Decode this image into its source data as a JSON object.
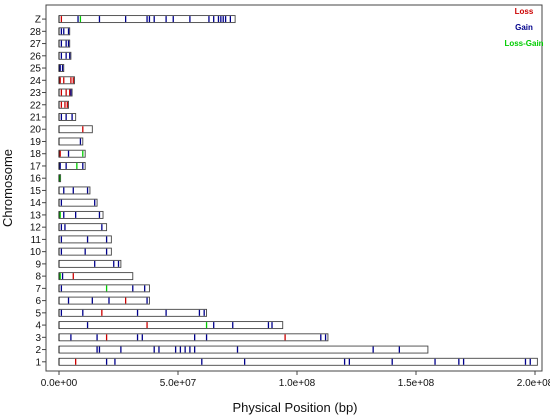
{
  "chart_data": {
    "type": "chromosome-ideogram",
    "xlabel": "Physical Position (bp)",
    "ylabel": "Chromosome",
    "xlim": [
      0,
      200000000
    ],
    "x_ticks": [
      {
        "value": 0,
        "label": "0.0e+00"
      },
      {
        "value": 50000000,
        "label": "5.0e+07"
      },
      {
        "value": 100000000,
        "label": "1.0e+08"
      },
      {
        "value": 150000000,
        "label": "1.5e+08"
      },
      {
        "value": 200000000,
        "label": "2.0e+08"
      }
    ],
    "legend": [
      {
        "name": "Loss",
        "color": "#cc0000"
      },
      {
        "name": "Gain",
        "color": "#00008b"
      },
      {
        "name": "Loss-Gain",
        "color": "#00cc00"
      }
    ],
    "colors": {
      "Loss": "#cc0000",
      "Gain": "#00008b",
      "Loss-Gain": "#00cc00",
      "frame": "#444444",
      "boundary": "#111111"
    },
    "chromosomes": [
      {
        "name": "1",
        "length": 201000000,
        "markers": [
          [
            7,
            "Loss"
          ],
          [
            20,
            "Gain"
          ],
          [
            23.5,
            "Gain"
          ],
          [
            60,
            "Gain"
          ],
          [
            78,
            "Gain"
          ],
          [
            120,
            "Gain"
          ],
          [
            122,
            "Gain"
          ],
          [
            140,
            "Gain"
          ],
          [
            158,
            "Gain"
          ],
          [
            168,
            "Gain"
          ],
          [
            170,
            "Gain"
          ],
          [
            196,
            "Gain"
          ],
          [
            198,
            "Gain"
          ]
        ]
      },
      {
        "name": "2",
        "length": 155000000,
        "markers": [
          [
            16,
            "Gain"
          ],
          [
            17,
            "Gain"
          ],
          [
            26,
            "Gain"
          ],
          [
            40,
            "Gain"
          ],
          [
            42,
            "Gain"
          ],
          [
            49,
            "Gain"
          ],
          [
            51,
            "Gain"
          ],
          [
            53,
            "Gain"
          ],
          [
            55,
            "Gain"
          ],
          [
            57,
            "Gain"
          ],
          [
            75,
            "Gain"
          ],
          [
            132,
            "Gain"
          ],
          [
            143,
            "Gain"
          ]
        ]
      },
      {
        "name": "3",
        "length": 113000000,
        "markers": [
          [
            5,
            "Gain"
          ],
          [
            16,
            "Gain"
          ],
          [
            20,
            "Loss"
          ],
          [
            33,
            "Gain"
          ],
          [
            35,
            "Gain"
          ],
          [
            57,
            "Gain"
          ],
          [
            62,
            "Gain"
          ],
          [
            95,
            "Loss"
          ],
          [
            110,
            "Gain"
          ],
          [
            112,
            "Gain"
          ]
        ]
      },
      {
        "name": "4",
        "length": 94000000,
        "markers": [
          [
            12,
            "Gain"
          ],
          [
            37,
            "Loss"
          ],
          [
            62,
            "Loss-Gain"
          ],
          [
            65,
            "Gain"
          ],
          [
            73,
            "Gain"
          ],
          [
            88,
            "Gain"
          ],
          [
            89.5,
            "Gain"
          ]
        ]
      },
      {
        "name": "5",
        "length": 62000000,
        "markers": [
          [
            1,
            "Gain"
          ],
          [
            10,
            "Gain"
          ],
          [
            18,
            "Loss"
          ],
          [
            33,
            "Gain"
          ],
          [
            45,
            "Gain"
          ],
          [
            59,
            "Gain"
          ],
          [
            61,
            "Gain"
          ]
        ]
      },
      {
        "name": "6",
        "length": 38000000,
        "markers": [
          [
            4,
            "Gain"
          ],
          [
            14,
            "Gain"
          ],
          [
            21,
            "Gain"
          ],
          [
            28,
            "Loss"
          ],
          [
            37,
            "Gain"
          ]
        ]
      },
      {
        "name": "7",
        "length": 38000000,
        "markers": [
          [
            1,
            "Gain"
          ],
          [
            20,
            "Loss-Gain"
          ],
          [
            31,
            "Gain"
          ],
          [
            36,
            "Gain"
          ]
        ]
      },
      {
        "name": "8",
        "length": 31000000,
        "markers": [
          [
            0.5,
            "Loss-Gain"
          ],
          [
            1.5,
            "Gain"
          ],
          [
            6,
            "Loss"
          ]
        ]
      },
      {
        "name": "9",
        "length": 26000000,
        "markers": [
          [
            15,
            "Gain"
          ],
          [
            23,
            "Gain"
          ],
          [
            25,
            "Gain"
          ]
        ]
      },
      {
        "name": "10",
        "length": 22000000,
        "markers": [
          [
            1,
            "Gain"
          ],
          [
            11,
            "Gain"
          ],
          [
            20,
            "Gain"
          ]
        ]
      },
      {
        "name": "11",
        "length": 22000000,
        "markers": [
          [
            1,
            "Gain"
          ],
          [
            12,
            "Gain"
          ],
          [
            20,
            "Gain"
          ]
        ]
      },
      {
        "name": "12",
        "length": 20000000,
        "markers": [
          [
            1,
            "Gain"
          ],
          [
            2.5,
            "Gain"
          ],
          [
            18,
            "Gain"
          ]
        ]
      },
      {
        "name": "13",
        "length": 18500000,
        "markers": [
          [
            0.5,
            "Loss-Gain"
          ],
          [
            2,
            "Gain"
          ],
          [
            7,
            "Gain"
          ],
          [
            17,
            "Gain"
          ]
        ]
      },
      {
        "name": "14",
        "length": 16000000,
        "markers": [
          [
            1,
            "Gain"
          ],
          [
            15,
            "Gain"
          ]
        ]
      },
      {
        "name": "15",
        "length": 13000000,
        "markers": [
          [
            2,
            "Gain"
          ],
          [
            6,
            "Gain"
          ],
          [
            12,
            "Gain"
          ]
        ]
      },
      {
        "name": "16",
        "length": 400000,
        "markers": [
          [
            0.1,
            "Loss-Gain"
          ],
          [
            0.3,
            "Loss-Gain"
          ]
        ]
      },
      {
        "name": "17",
        "length": 11000000,
        "markers": [
          [
            0.5,
            "Gain"
          ],
          [
            3,
            "Gain"
          ],
          [
            7.5,
            "Loss-Gain"
          ],
          [
            10,
            "Gain"
          ]
        ]
      },
      {
        "name": "18",
        "length": 11000000,
        "markers": [
          [
            0.5,
            "Loss"
          ],
          [
            4,
            "Gain"
          ],
          [
            10,
            "Loss-Gain"
          ]
        ]
      },
      {
        "name": "19",
        "length": 10000000,
        "markers": [
          [
            9,
            "Gain"
          ]
        ]
      },
      {
        "name": "20",
        "length": 14000000,
        "markers": [
          [
            10,
            "Loss"
          ]
        ]
      },
      {
        "name": "21",
        "length": 7000000,
        "markers": [
          [
            1,
            "Gain"
          ],
          [
            3,
            "Gain"
          ],
          [
            5.5,
            "Gain"
          ]
        ]
      },
      {
        "name": "22",
        "length": 4000000,
        "markers": [
          [
            1,
            "Loss"
          ],
          [
            2.5,
            "Loss"
          ],
          [
            3.5,
            "Loss"
          ]
        ]
      },
      {
        "name": "23",
        "length": 5500000,
        "markers": [
          [
            1,
            "Loss"
          ],
          [
            3,
            "Loss"
          ],
          [
            4.5,
            "Loss"
          ],
          [
            5,
            "Gain"
          ]
        ]
      },
      {
        "name": "24",
        "length": 6500000,
        "markers": [
          [
            0.5,
            "Loss"
          ],
          [
            2,
            "Loss"
          ],
          [
            5,
            "Loss"
          ],
          [
            6,
            "Loss"
          ]
        ]
      },
      {
        "name": "25",
        "length": 2000000,
        "markers": [
          [
            0.5,
            "Gain"
          ],
          [
            1.5,
            "Gain"
          ]
        ]
      },
      {
        "name": "26",
        "length": 5000000,
        "markers": [
          [
            1,
            "Gain"
          ],
          [
            3,
            "Gain"
          ],
          [
            4.5,
            "Gain"
          ]
        ]
      },
      {
        "name": "27",
        "length": 4500000,
        "markers": [
          [
            1,
            "Gain"
          ],
          [
            3,
            "Gain"
          ],
          [
            4,
            "Gain"
          ]
        ]
      },
      {
        "name": "28",
        "length": 4500000,
        "markers": [
          [
            1,
            "Gain"
          ],
          [
            2,
            "Gain"
          ],
          [
            4,
            "Gain"
          ]
        ]
      },
      {
        "name": "Z",
        "length": 74000000,
        "markers": [
          [
            1,
            "Loss"
          ],
          [
            8,
            "Gain"
          ],
          [
            9,
            "Loss-Gain"
          ],
          [
            17,
            "Gain"
          ],
          [
            28,
            "Gain"
          ],
          [
            37,
            "Gain"
          ],
          [
            38,
            "Gain"
          ],
          [
            40,
            "Gain"
          ],
          [
            45,
            "Gain"
          ],
          [
            48,
            "Gain"
          ],
          [
            55,
            "Gain"
          ],
          [
            63,
            "Gain"
          ],
          [
            65,
            "Gain"
          ],
          [
            67,
            "Gain"
          ],
          [
            68,
            "Gain"
          ],
          [
            69,
            "Gain"
          ],
          [
            70,
            "Gain"
          ],
          [
            72,
            "Gain"
          ]
        ]
      }
    ]
  }
}
